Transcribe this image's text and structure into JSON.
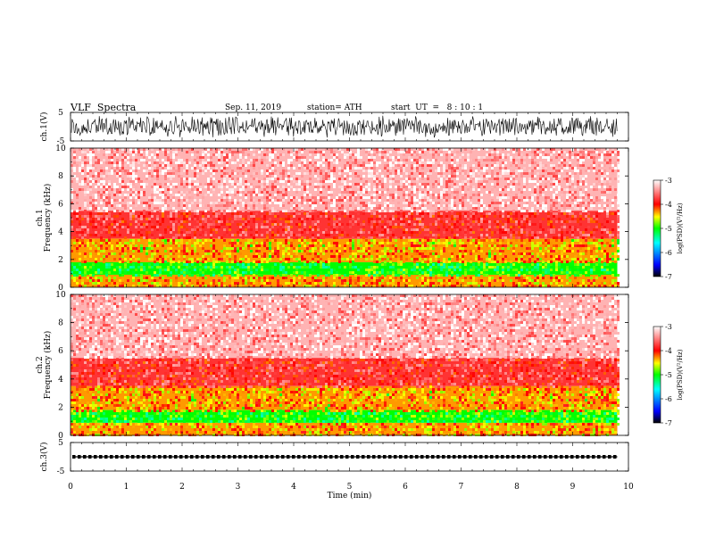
{
  "header": {
    "title": "VLF  Spectra",
    "date": "Sep. 11, 2019",
    "station": "station= ATH",
    "start": "start  UT  =   8 : 10 : 1"
  },
  "chart_data": [
    {
      "type": "line",
      "panel": "ch1-waveform",
      "ylabel": "ch.1(V)",
      "ylim": [
        -5,
        5
      ],
      "yticks": [
        "5",
        "-5"
      ],
      "xlim": [
        0,
        10
      ],
      "description_values": {
        "amplitude_range": [
          -4,
          4
        ],
        "x_end": 9.8
      }
    },
    {
      "type": "heatmap",
      "panel": "ch1-spectrogram",
      "ylabel": "ch.1\nFrequency  (kHz)",
      "ylim": [
        0,
        10
      ],
      "yticks": [
        "0",
        "2",
        "4",
        "6",
        "8",
        "10"
      ],
      "xlim": [
        0,
        10
      ],
      "x_end": 9.8,
      "bands_khz": [
        {
          "from": 0,
          "to": 0.9,
          "level": -4.3
        },
        {
          "from": 0.9,
          "to": 1.8,
          "level": -5.0
        },
        {
          "from": 1.8,
          "to": 3.5,
          "level": -4.3
        },
        {
          "from": 3.5,
          "to": 5.5,
          "level": -3.8
        },
        {
          "from": 5.5,
          "to": 10,
          "level": -3.3
        }
      ]
    },
    {
      "type": "heatmap",
      "panel": "ch2-spectrogram",
      "ylabel": "ch.2\nFrequency  (kHz)",
      "ylim": [
        0,
        10
      ],
      "yticks": [
        "0",
        "2",
        "4",
        "6",
        "8",
        "10"
      ],
      "xlim": [
        0,
        10
      ],
      "x_end": 9.8,
      "bands_khz": [
        {
          "from": 0,
          "to": 0.9,
          "level": -4.3
        },
        {
          "from": 0.9,
          "to": 1.8,
          "level": -5.0
        },
        {
          "from": 1.8,
          "to": 3.5,
          "level": -4.3
        },
        {
          "from": 3.5,
          "to": 5.5,
          "level": -3.8
        },
        {
          "from": 5.5,
          "to": 10,
          "level": -3.3
        }
      ]
    },
    {
      "type": "line",
      "panel": "ch3-waveform",
      "ylabel": "ch.3(V)",
      "ylim": [
        -5,
        5
      ],
      "yticks": [
        "5",
        "-5"
      ],
      "xlim": [
        0,
        10
      ],
      "level_v": 0,
      "x_end": 9.8
    }
  ],
  "colorbar": {
    "label": "log(PSD)(V²/Hz)",
    "ticks": [
      "-3",
      "-4",
      "-5",
      "-6",
      "-7"
    ],
    "range": [
      -7,
      -3
    ]
  },
  "xaxis": {
    "label": "Time  (min)",
    "ticks": [
      "0",
      "1",
      "2",
      "3",
      "4",
      "5",
      "6",
      "7",
      "8",
      "9",
      "10"
    ]
  },
  "colors": {
    "axis": "#000000",
    "background": "#ffffff"
  }
}
